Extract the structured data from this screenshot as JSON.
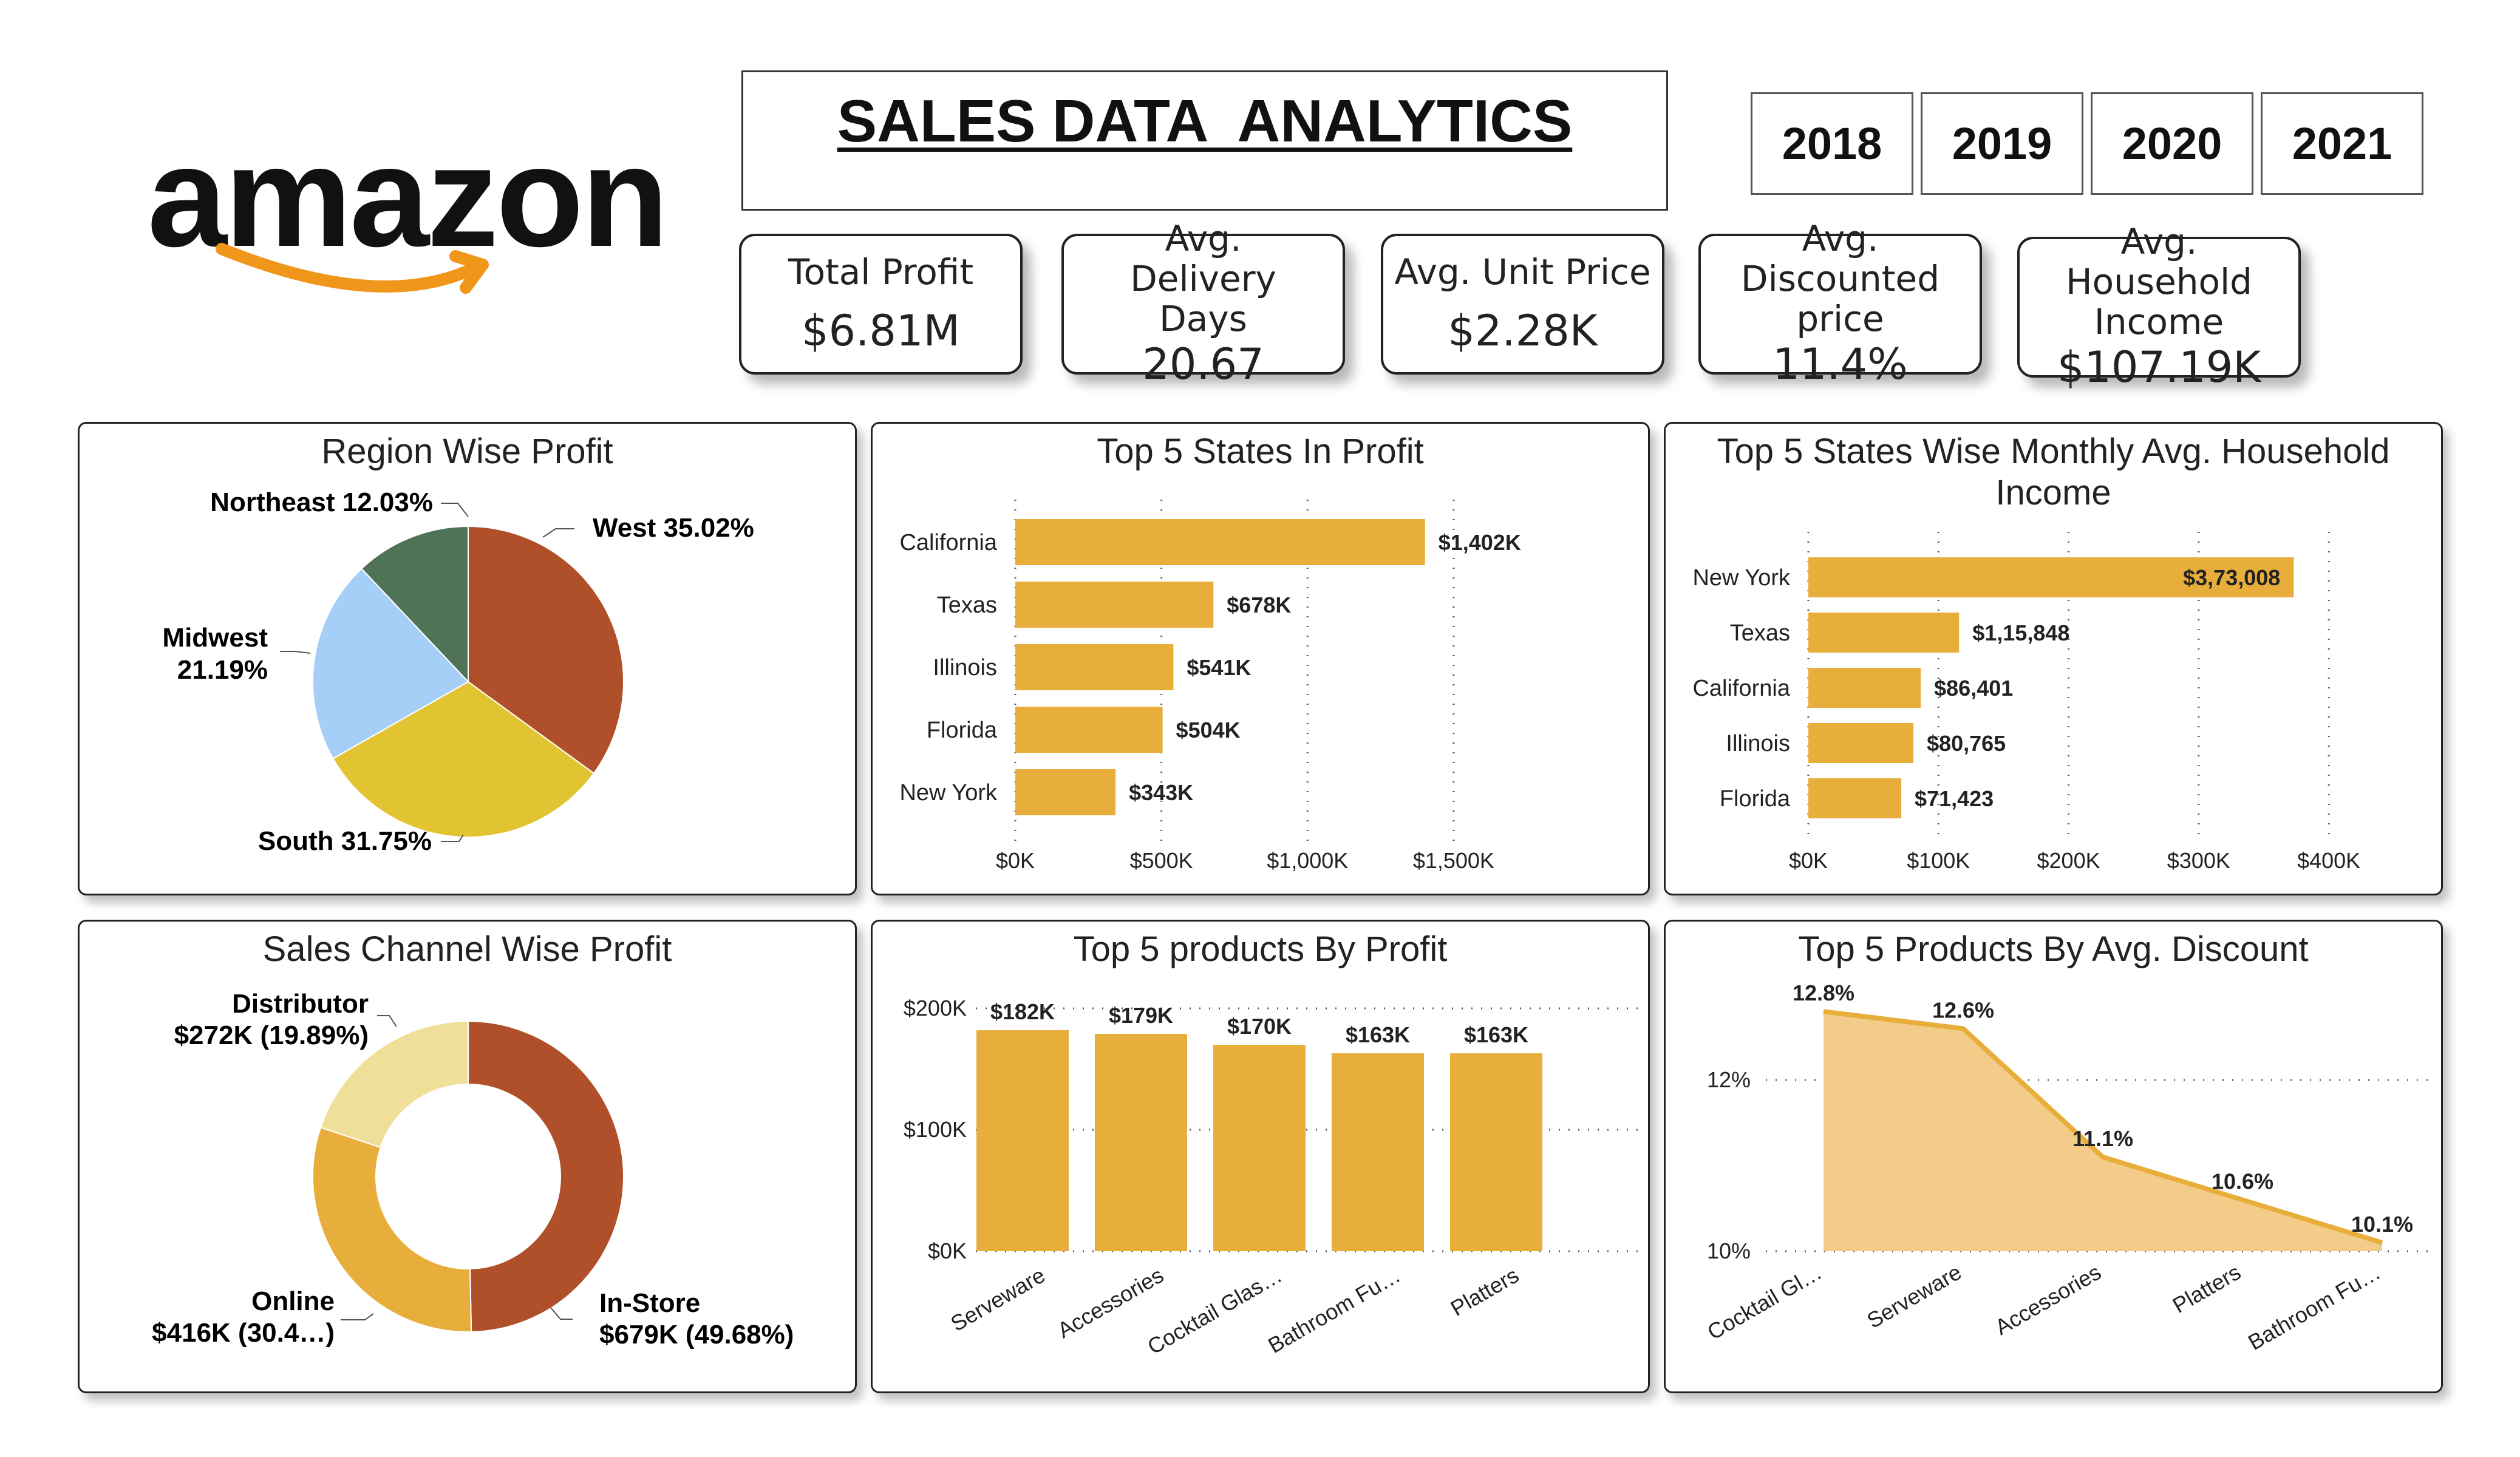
{
  "logo": {
    "text": "amazon",
    "colors": {
      "text": "#111111",
      "smile": "#f0961b"
    }
  },
  "header": {
    "title": "SALES DATA  ANALYTICS"
  },
  "years": [
    "2018",
    "2019",
    "2020",
    "2021"
  ],
  "kpis": [
    {
      "label": "Total Profit",
      "value": "$6.81M"
    },
    {
      "label": "Avg. Delivery Days",
      "value": "20.67"
    },
    {
      "label": "Avg. Unit Price",
      "value": "$2.28K"
    },
    {
      "label": "Avg. Discounted price",
      "value": "11.4%"
    },
    {
      "label": "Avg. Household Income",
      "value": "$107.19K"
    }
  ],
  "colors": {
    "bar": "#e8ae3c",
    "area_fill": "#f2cc88",
    "area_line": "#e8ae3c",
    "west": "#b0502a",
    "south": "#e2c433",
    "midwest": "#a6cff8",
    "northeast": "#507257",
    "distributor": "#f0df98",
    "online": "#e8ae3c",
    "instore": "#b0502a"
  },
  "chart_data": [
    {
      "type": "pie",
      "title": "Region Wise Profit",
      "slices": [
        {
          "name": "West",
          "value": 35.02,
          "label": "West 35.02%"
        },
        {
          "name": "South",
          "value": 31.75,
          "label": "South 31.75%"
        },
        {
          "name": "Midwest",
          "value": 21.19,
          "label": "Midwest 21.19%"
        },
        {
          "name": "Northeast",
          "value": 12.03,
          "label": "Northeast 12.03%"
        }
      ]
    },
    {
      "type": "bar",
      "orientation": "horizontal",
      "title": "Top 5 States In Profit",
      "categories": [
        "California",
        "Texas",
        "Illinois",
        "Florida",
        "New York"
      ],
      "values": [
        1402,
        678,
        541,
        504,
        343
      ],
      "data_labels": [
        "$1,402K",
        "$678K",
        "$541K",
        "$504K",
        "$343K"
      ],
      "xlim": [
        0,
        1600
      ],
      "x_ticks": [
        0,
        500,
        1000,
        1500
      ],
      "x_tick_labels": [
        "$0K",
        "$500K",
        "$1,000K",
        "$1,500K"
      ]
    },
    {
      "type": "bar",
      "orientation": "horizontal",
      "title": "Top 5 States Wise Monthly Avg. Household Income",
      "categories": [
        "New York",
        "Texas",
        "California",
        "Illinois",
        "Florida"
      ],
      "values": [
        373008,
        115848,
        86401,
        80765,
        71423
      ],
      "data_labels": [
        "$3,73,008",
        "$1,15,848",
        "$86,401",
        "$80,765",
        "$71,423"
      ],
      "xlim": [
        0,
        420000
      ],
      "x_ticks": [
        0,
        100000,
        200000,
        300000,
        400000
      ],
      "x_tick_labels": [
        "$0K",
        "$100K",
        "$200K",
        "$300K",
        "$400K"
      ]
    },
    {
      "type": "pie",
      "donut": true,
      "title": "Sales Channel Wise Profit",
      "slices": [
        {
          "name": "In-Store",
          "value": 49.68,
          "label_line1": "In-Store",
          "label_line2": "$679K (49.68%)"
        },
        {
          "name": "Online",
          "value": 30.43,
          "label_line1": "Online",
          "label_line2": "$416K (30.4…)"
        },
        {
          "name": "Distributor",
          "value": 19.89,
          "label_line1": "Distributor",
          "label_line2": "$272K (19.89%)"
        }
      ]
    },
    {
      "type": "bar",
      "title": "Top 5 products By Profit",
      "categories": [
        "Serveware",
        "Accessories",
        "Cocktail Glas…",
        "Bathroom Fu…",
        "Platters"
      ],
      "values": [
        182,
        179,
        170,
        163,
        163
      ],
      "data_labels": [
        "$182K",
        "$179K",
        "$170K",
        "$163K",
        "$163K"
      ],
      "ylim": [
        0,
        200
      ],
      "y_ticks": [
        0,
        100,
        200
      ],
      "y_tick_labels": [
        "$0K",
        "$100K",
        "$200K"
      ]
    },
    {
      "type": "area",
      "title": "Top 5 Products By Avg. Discount",
      "categories": [
        "Cocktail Gl…",
        "Serveware",
        "Accessories",
        "Platters",
        "Bathroom Fu…"
      ],
      "values": [
        12.8,
        12.6,
        11.1,
        10.6,
        10.1
      ],
      "data_labels": [
        "12.8%",
        "12.6%",
        "11.1%",
        "10.6%",
        "10.1%"
      ],
      "ylim": [
        10,
        13
      ],
      "y_ticks": [
        10,
        12
      ],
      "y_tick_labels": [
        "10%",
        "12%"
      ]
    }
  ]
}
